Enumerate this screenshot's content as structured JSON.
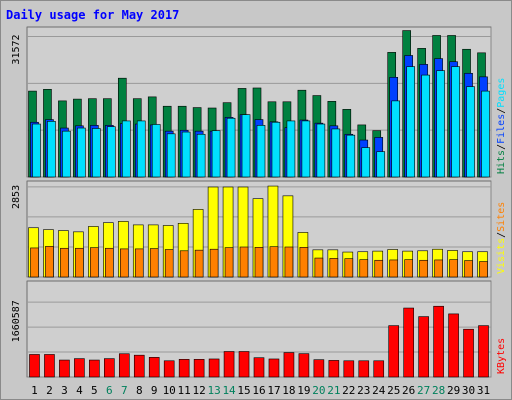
{
  "chart_data": {
    "type": "bar",
    "title": "Daily usage for May 2017",
    "categories": [
      "1",
      "2",
      "3",
      "4",
      "5",
      "6",
      "7",
      "8",
      "9",
      "10",
      "11",
      "12",
      "13",
      "14",
      "15",
      "16",
      "17",
      "18",
      "19",
      "20",
      "21",
      "22",
      "23",
      "24",
      "25",
      "26",
      "27",
      "28",
      "29",
      "30",
      "31"
    ],
    "weekend_days": [
      "6",
      "7",
      "13",
      "14",
      "20",
      "21",
      "27",
      "28"
    ],
    "colors": {
      "hits": "#008040",
      "files": "#0040ff",
      "pages": "#00e0ff",
      "visits": "#ffff00",
      "sites": "#ff8000",
      "kbytes": "#ff0000",
      "weekday_label": "#000000",
      "weekend_label": "#00805c",
      "title": "#0000ff",
      "panel_bg": "#cfcfcf",
      "frame_bg": "#c8c8c8"
    },
    "panels": [
      {
        "id": "hits-files-pages",
        "max_label": "31572",
        "ylim": [
          0,
          33700
        ],
        "series": [
          {
            "name": "Hits",
            "color_key": "hits",
            "values": [
              19300,
              19700,
              17100,
              17500,
              17600,
              17600,
              22200,
              17600,
              18000,
              15900,
              15900,
              15600,
              15500,
              16700,
              19900,
              20000,
              16900,
              16900,
              19500,
              18300,
              17000,
              15200,
              11700,
              10400,
              28000,
              32900,
              28900,
              31800,
              31800,
              28700,
              27900
            ]
          },
          {
            "name": "Files",
            "color_key": "files",
            "values": [
              12300,
              12900,
              11000,
              11500,
              11600,
              11600,
              12000,
              11900,
              11700,
              10300,
              10500,
              10300,
              10300,
              13400,
              14000,
              12900,
              12400,
              11100,
              12800,
              12100,
              11500,
              9600,
              8300,
              8900,
              22400,
              27300,
              25300,
              26600,
              25900,
              23300,
              22500
            ]
          },
          {
            "name": "Pages",
            "color_key": "pages",
            "values": [
              11900,
              12500,
              10300,
              11000,
              10900,
              11300,
              12600,
              12600,
              11800,
              9700,
              10100,
              9600,
              10400,
              13200,
              14000,
              11600,
              12300,
              12600,
              12600,
              11900,
              10800,
              9400,
              6600,
              5700,
              17100,
              24800,
              22900,
              23900,
              24800,
              20300,
              19300
            ]
          }
        ],
        "side_labels": [
          {
            "text": "Hits",
            "color_key": "hits"
          },
          {
            "text": "/",
            "color_key": "weekday_label"
          },
          {
            "text": "Files",
            "color_key": "files"
          },
          {
            "text": "/",
            "color_key": "weekday_label"
          },
          {
            "text": "Pages",
            "color_key": "pages"
          }
        ]
      },
      {
        "id": "visits-sites",
        "max_label": "2853",
        "ylim": [
          0,
          3040
        ],
        "series": [
          {
            "name": "Visits",
            "color_key": "visits",
            "values": [
              1560,
              1500,
              1470,
              1430,
              1600,
              1720,
              1760,
              1650,
              1650,
              1630,
              1700,
              2140,
              2850,
              2850,
              2850,
              2480,
              2880,
              2570,
              1410,
              860,
              860,
              790,
              800,
              820,
              870,
              820,
              830,
              880,
              840,
              800,
              800
            ]
          },
          {
            "name": "Sites",
            "color_key": "sites",
            "values": [
              920,
              970,
              910,
              910,
              930,
              910,
              890,
              890,
              900,
              870,
              830,
              850,
              880,
              930,
              950,
              940,
              960,
              950,
              940,
              600,
              590,
              580,
              550,
              530,
              540,
              550,
              530,
              540,
              550,
              520,
              490
            ]
          }
        ],
        "side_labels": [
          {
            "text": "Visits",
            "color_key": "visits"
          },
          {
            "text": "/",
            "color_key": "weekday_label"
          },
          {
            "text": "Sites",
            "color_key": "sites"
          }
        ]
      },
      {
        "id": "kbytes",
        "max_label": "1660587",
        "ylim": [
          0,
          2130000
        ],
        "series": [
          {
            "name": "KBytes",
            "color_key": "kbytes",
            "values": [
              500000,
              500000,
              376000,
              408000,
              376000,
              408000,
              516000,
              484000,
              436000,
              360000,
              392000,
              392000,
              400000,
              566000,
              566000,
              428000,
              400000,
              542000,
              518000,
              384000,
              368000,
              360000,
              360000,
              360000,
              1140000,
              1530000,
              1340000,
              1570000,
              1400000,
              1060000,
              1140000
            ]
          }
        ],
        "side_labels": [
          {
            "text": "KBytes",
            "color_key": "kbytes"
          }
        ]
      }
    ]
  }
}
